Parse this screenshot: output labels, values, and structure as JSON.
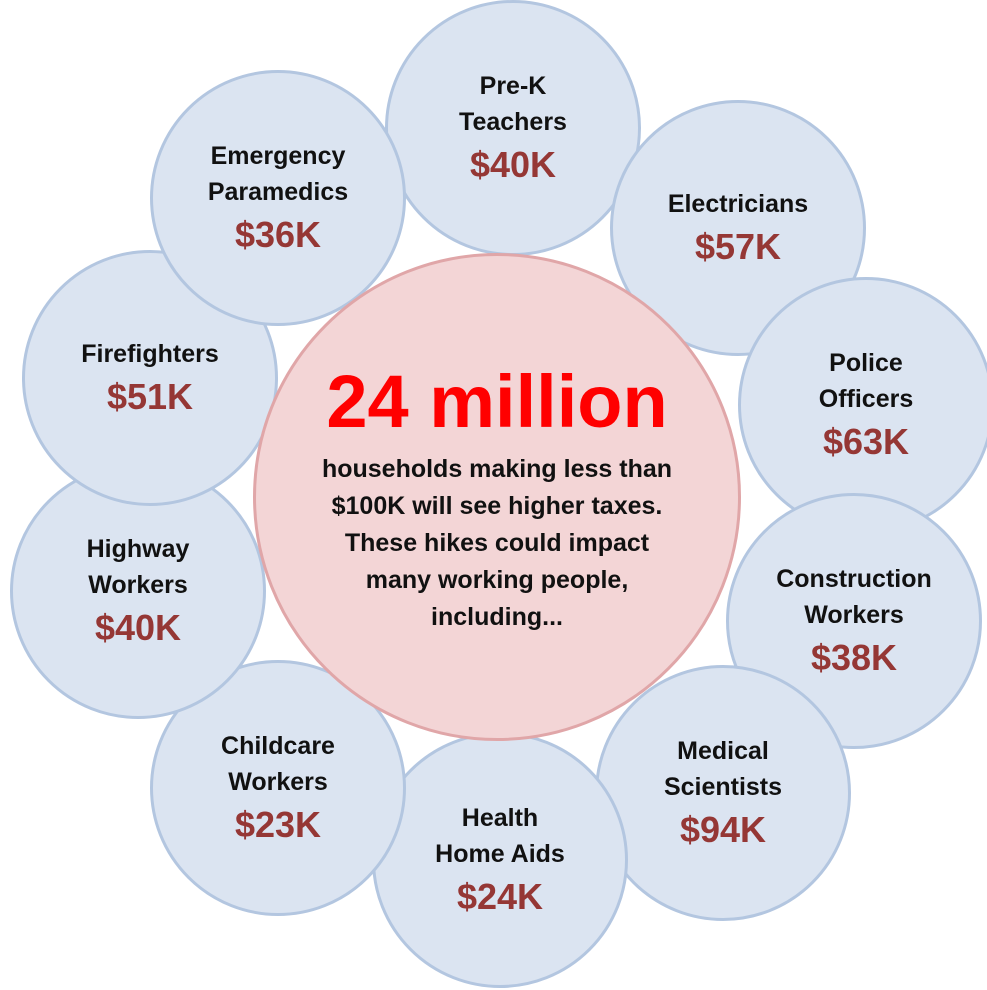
{
  "center": {
    "headline": "24 million",
    "description": "households making less than\n$100K will see higher taxes.\nThese hikes could impact\nmany working people,\nincluding..."
  },
  "occupations": [
    {
      "title": "Pre-K\nTeachers",
      "salary": "$40K"
    },
    {
      "title": "Electricians",
      "salary": "$57K"
    },
    {
      "title": "Police\nOfficers",
      "salary": "$63K"
    },
    {
      "title": "Construction\nWorkers",
      "salary": "$38K"
    },
    {
      "title": "Medical\nScientists",
      "salary": "$94K"
    },
    {
      "title": "Health\nHome Aids",
      "salary": "$24K"
    },
    {
      "title": "Childcare\nWorkers",
      "salary": "$23K"
    },
    {
      "title": "Highway\nWorkers",
      "salary": "$40K"
    },
    {
      "title": "Firefighters",
      "salary": "$51K"
    },
    {
      "title": "Emergency\nParamedics",
      "salary": "$36K"
    }
  ]
}
